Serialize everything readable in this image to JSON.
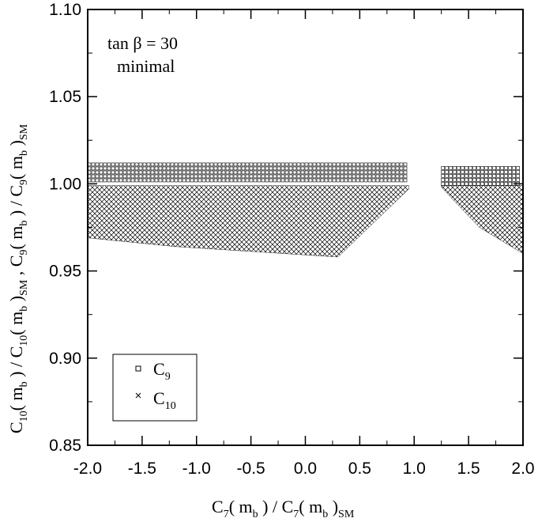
{
  "chart_data": {
    "type": "scatter",
    "title": "",
    "annotation": {
      "line1": "tan β = 30",
      "line2": "minimal"
    },
    "xlabel": {
      "lead": "C",
      "lead_sub": "7",
      "mid": "( m",
      "mid_sub": "b",
      "rest": ") / C",
      "rest_sub": "7",
      "tail": "( m",
      "tail_sub": "b",
      "end": ")",
      "end_sub": "SM"
    },
    "ylabel": "C10( mb ) / C10( mb )SM , C9( mb ) / C9( mb )SM",
    "xlim": [
      -2.0,
      2.0
    ],
    "ylim": [
      0.85,
      1.1
    ],
    "x_ticks": [
      "-2.0",
      "-1.5",
      "-1.0",
      "-0.5",
      "0.0",
      "0.5",
      "1.0",
      "1.5",
      "2.0"
    ],
    "y_ticks": [
      "0.85",
      "0.90",
      "0.95",
      "1.00",
      "1.05",
      "1.10"
    ],
    "grid": false,
    "legend_position": "bottom-left",
    "series": [
      {
        "name": "C9",
        "marker": "square",
        "bands": [
          {
            "x": [
              -2.0,
              0.95
            ],
            "y": [
              1.0,
              1.012
            ]
          },
          {
            "x": [
              1.25,
              2.0
            ],
            "y": [
              0.999,
              1.01
            ]
          }
        ]
      },
      {
        "name": "C10",
        "marker": "cross",
        "bands": [
          {
            "x": [
              -2.0,
              0.95
            ],
            "y_low_at_x": [
              [
                -2.0,
                0.969
              ],
              [
                -1.2,
                0.964
              ],
              [
                0.3,
                0.958
              ],
              [
                0.95,
                0.997
              ]
            ],
            "y_high": 0.999
          },
          {
            "x": [
              1.25,
              2.0
            ],
            "y_low_at_x": [
              [
                1.25,
                0.998
              ],
              [
                1.6,
                0.975
              ],
              [
                2.0,
                0.96
              ]
            ],
            "y_high": 0.999
          }
        ]
      }
    ]
  }
}
